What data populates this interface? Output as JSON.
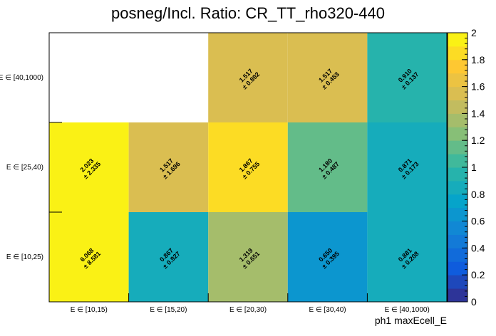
{
  "chart_data": {
    "type": "heatmap",
    "title": "posneg/Incl. Ratio: CR_TT_rho320-440",
    "xlabel": "ph1 maxEcell_E",
    "ylabel": "",
    "x_categories": [
      "E ∈ [10,15)",
      "E ∈ [15,20)",
      "E ∈ [20,30)",
      "E ∈ [30,40)",
      "E ∈ [40,1000)"
    ],
    "y_categories": [
      "E ∈ [10,25)",
      "E ∈ [25,40)",
      "E ∈ [40,1000)"
    ],
    "cells": [
      {
        "xi": 0,
        "yi": 0,
        "value": 6.068,
        "value_label": "6.068",
        "error_label": "± 8.581"
      },
      {
        "xi": 1,
        "yi": 0,
        "value": 0.867,
        "value_label": "0.867",
        "error_label": "± 0.927"
      },
      {
        "xi": 2,
        "yi": 0,
        "value": 1.319,
        "value_label": "1.319",
        "error_label": "± 0.651"
      },
      {
        "xi": 3,
        "yi": 0,
        "value": 0.65,
        "value_label": "0.650",
        "error_label": "± 0.395"
      },
      {
        "xi": 4,
        "yi": 0,
        "value": 0.881,
        "value_label": "0.881",
        "error_label": "± 0.208"
      },
      {
        "xi": 0,
        "yi": 1,
        "value": 2.023,
        "value_label": "2.023",
        "error_label": "± 2.335"
      },
      {
        "xi": 1,
        "yi": 1,
        "value": 1.517,
        "value_label": "1.517",
        "error_label": "± 1.696"
      },
      {
        "xi": 2,
        "yi": 1,
        "value": 1.867,
        "value_label": "1.867",
        "error_label": "± 0.755"
      },
      {
        "xi": 3,
        "yi": 1,
        "value": 1.18,
        "value_label": "1.180",
        "error_label": "± 0.487"
      },
      {
        "xi": 4,
        "yi": 1,
        "value": 0.871,
        "value_label": "0.871",
        "error_label": "± 0.173"
      },
      {
        "xi": 2,
        "yi": 2,
        "value": 1.517,
        "value_label": "1.517",
        "error_label": "± 0.892"
      },
      {
        "xi": 3,
        "yi": 2,
        "value": 1.517,
        "value_label": "1.517",
        "error_label": "± 0.453"
      },
      {
        "xi": 4,
        "yi": 2,
        "value": 0.91,
        "value_label": "0.910",
        "error_label": "± 0.137"
      }
    ],
    "zlim": [
      0,
      2
    ],
    "colorbar_ticks": [
      "0",
      "0.2",
      "0.4",
      "0.6",
      "0.8",
      "1",
      "1.2",
      "1.4",
      "1.6",
      "1.8",
      "2"
    ],
    "colormap": [
      "#352a87",
      "#0f5cdd",
      "#1481d6",
      "#06a4ca",
      "#2eb7a4",
      "#87bf77",
      "#d1bb59",
      "#fec832",
      "#f9fb0e"
    ],
    "grid": false,
    "legend": "colorbar-right"
  }
}
